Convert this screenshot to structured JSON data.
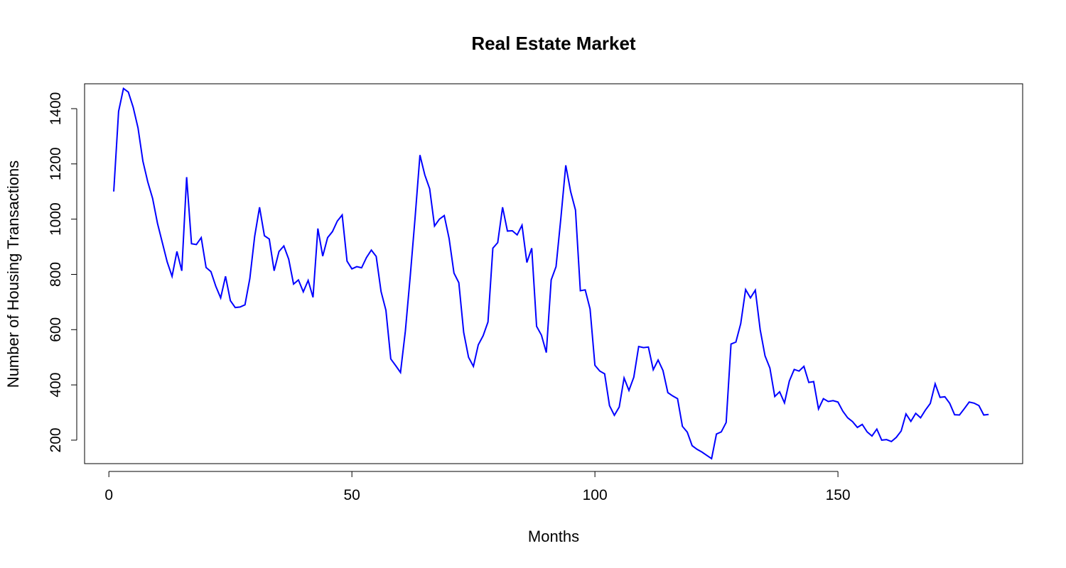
{
  "chart_data": {
    "type": "line",
    "title": "Real Estate Market",
    "xlabel": "Months",
    "ylabel": "Number of Housing Transactions",
    "xlim": [
      -5,
      188
    ],
    "ylim": [
      115,
      1490
    ],
    "x_ticks": [
      0,
      50,
      100,
      150
    ],
    "y_ticks": [
      200,
      400,
      600,
      800,
      1000,
      1200,
      1400
    ],
    "grid": false,
    "legend": "none",
    "line_color": "#0000ff",
    "series": [
      {
        "values": [
          1100,
          1390,
          1473,
          1460,
          1405,
          1330,
          1210,
          1135,
          1075,
          985,
          915,
          845,
          793,
          883,
          813,
          1152,
          911,
          908,
          933,
          825,
          810,
          757,
          715,
          793,
          705,
          680,
          682,
          690,
          785,
          938,
          1043,
          940,
          928,
          813,
          883,
          903,
          855,
          765,
          780,
          737,
          778,
          717,
          966,
          866,
          933,
          955,
          993,
          1015,
          848,
          820,
          828,
          824,
          861,
          888,
          865,
          738,
          670,
          494,
          470,
          445,
          595,
          793,
          1005,
          1232,
          1160,
          1110,
          975,
          1000,
          1013,
          930,
          805,
          770,
          590,
          500,
          467,
          545,
          578,
          628,
          895,
          915,
          1043,
          957,
          958,
          943,
          978,
          843,
          895,
          612,
          580,
          517,
          780,
          828,
          1005,
          1195,
          1100,
          1033,
          741,
          744,
          675,
          471,
          450,
          440,
          325,
          290,
          320,
          425,
          380,
          428,
          539,
          535,
          537,
          455,
          490,
          452,
          372,
          360,
          350,
          250,
          229,
          180,
          167,
          157,
          145,
          133,
          222,
          230,
          264,
          548,
          555,
          622,
          745,
          715,
          743,
          600,
          505,
          461,
          358,
          375,
          335,
          414,
          456,
          450,
          467,
          409,
          412,
          313,
          350,
          340,
          343,
          338,
          305,
          281,
          267,
          246,
          257,
          230,
          215,
          240,
          200,
          202,
          195,
          210,
          233,
          295,
          268,
          297,
          281,
          309,
          333,
          404,
          355,
          357,
          333,
          292,
          291,
          314,
          338,
          334,
          325,
          291,
          293
        ]
      }
    ]
  }
}
